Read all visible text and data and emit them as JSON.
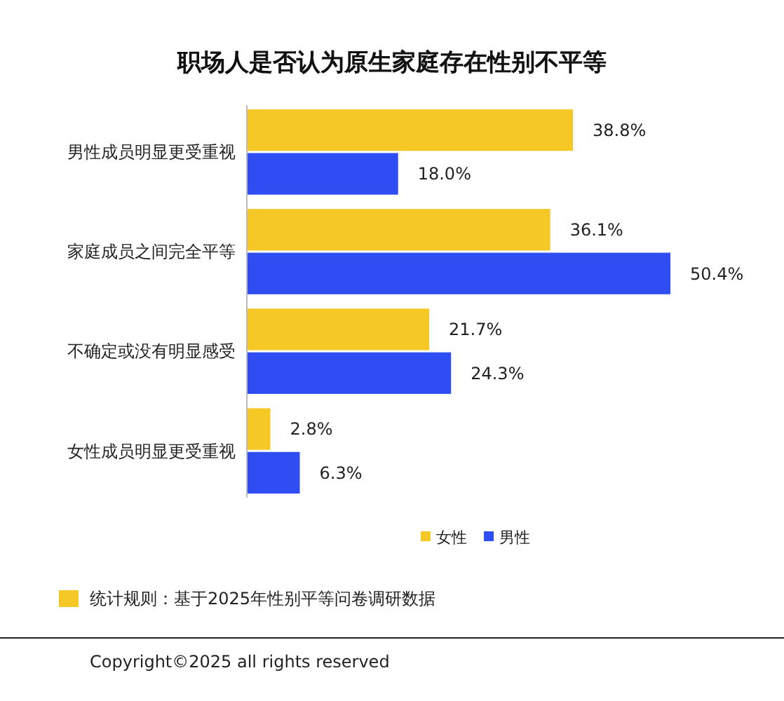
{
  "chart_data": {
    "type": "bar",
    "orientation": "horizontal",
    "title": "职场人是否认为原生家庭存在性别不平等",
    "categories": [
      "男性成员明显更受重视",
      "家庭成员之间完全平等",
      "不确定或没有明显感受",
      "女性成员明显更受重视"
    ],
    "series": [
      {
        "name": "女性",
        "color": "#f5c825",
        "values": [
          38.8,
          36.1,
          21.7,
          2.8
        ],
        "value_labels": [
          "38.8%",
          "36.1%",
          "21.7%",
          "2.8%"
        ]
      },
      {
        "name": "男性",
        "color": "#2e4df2",
        "values": [
          18.0,
          50.4,
          24.3,
          6.3
        ],
        "value_labels": [
          "18.0%",
          "50.4%",
          "24.3%",
          "6.3%"
        ]
      }
    ],
    "legend": "bottom right",
    "annotations": [
      "统计规则：基于2025年性别平等问卷调研数据",
      "Copyright©2025 all rights reserved"
    ]
  }
}
